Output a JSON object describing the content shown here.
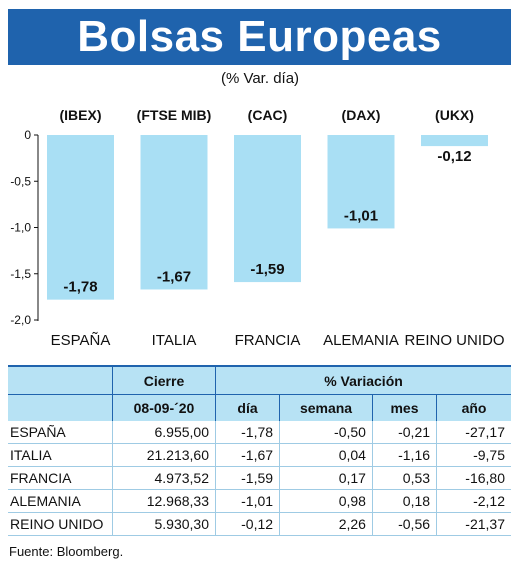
{
  "title": "Bolsas Europeas",
  "subtitle": "(% Var. día)",
  "source": "Fuente: Bloomberg.",
  "colors": {
    "banner": "#1f63ad",
    "bar": "#a9dff4",
    "table_header": "#b7e2f4"
  },
  "chart_data": {
    "type": "bar",
    "categories": [
      "ESPAÑA",
      "ITALIA",
      "FRANCIA",
      "ALEMANIA",
      "REINO UNIDO"
    ],
    "indices": [
      "(IBEX)",
      "(FTSE MIB)",
      "(CAC)",
      "(DAX)",
      "(UKX)"
    ],
    "values": [
      -1.78,
      -1.67,
      -1.59,
      -1.01,
      -0.12
    ],
    "value_labels": [
      "-1,78",
      "-1,67",
      "-1,59",
      "-1,01",
      "-0,12"
    ],
    "ylim": [
      -2.0,
      0
    ],
    "yticks": [
      0,
      -0.5,
      -1.0,
      -1.5,
      -2.0
    ],
    "ytick_labels": [
      "0",
      "-0,5",
      "-1,0",
      "-1,5",
      "-2,0"
    ],
    "grid": false
  },
  "table": {
    "group_headers": [
      "Cierre",
      "% Variación"
    ],
    "columns": [
      "08-09-´20",
      "día",
      "semana",
      "mes",
      "año"
    ],
    "rows": [
      {
        "name": "ESPAÑA",
        "cierre": "6.955,00",
        "dia": "-1,78",
        "semana": "-0,50",
        "mes": "-0,21",
        "ano": "-27,17"
      },
      {
        "name": "ITALIA",
        "cierre": "21.213,60",
        "dia": "-1,67",
        "semana": "0,04",
        "mes": "-1,16",
        "ano": "-9,75"
      },
      {
        "name": "FRANCIA",
        "cierre": "4.973,52",
        "dia": "-1,59",
        "semana": "0,17",
        "mes": "0,53",
        "ano": "-16,80"
      },
      {
        "name": "ALEMANIA",
        "cierre": "12.968,33",
        "dia": "-1,01",
        "semana": "0,98",
        "mes": "0,18",
        "ano": "-2,12"
      },
      {
        "name": "REINO UNIDO",
        "cierre": "5.930,30",
        "dia": "-0,12",
        "semana": "2,26",
        "mes": "-0,56",
        "ano": "-21,37"
      }
    ]
  }
}
